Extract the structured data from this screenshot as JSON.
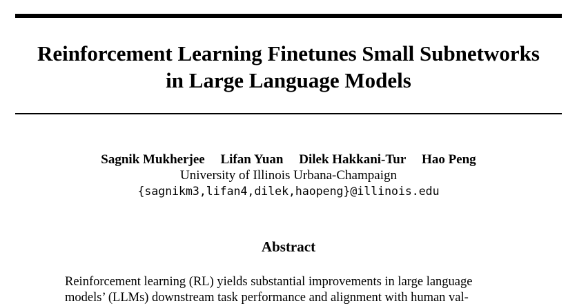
{
  "paper": {
    "title_lines": [
      "Reinforcement Learning Finetunes Small Subnetworks",
      "in Large Language Models"
    ],
    "authors": [
      "Sagnik Mukherjee",
      "Lifan Yuan",
      "Dilek Hakkani-Tur",
      "Hao Peng"
    ],
    "affiliation": "University of Illinois Urbana-Champaign",
    "email": "{sagnikm3,lifan4,dilek,haopeng}@illinois.edu",
    "abstract_heading": "Abstract",
    "abstract_lines": [
      "Reinforcement learning (RL) yields substantial improvements in large language",
      "models’ (LLMs) downstream task performance and alignment with human val-"
    ]
  }
}
